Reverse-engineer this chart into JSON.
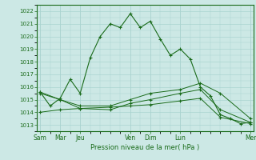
{
  "bg_color": "#cce8e5",
  "grid_color": "#aad4d0",
  "line_color": "#1a6b1a",
  "xlabel": "Pression niveau de la mer( hPa )",
  "ylim": [
    1012.5,
    1022.5
  ],
  "line1_x": [
    0,
    1,
    2,
    3,
    4,
    5,
    6,
    7,
    8,
    9,
    10,
    11,
    12,
    13,
    14,
    15,
    16,
    17,
    18,
    19,
    20,
    21
  ],
  "line1_y": [
    1015.6,
    1014.5,
    1015.1,
    1016.6,
    1015.5,
    1018.3,
    1020.0,
    1021.0,
    1020.7,
    1021.8,
    1020.7,
    1021.2,
    1019.8,
    1018.5,
    1019.0,
    1018.2,
    1016.0,
    1015.3,
    1013.8,
    1013.5,
    1013.1,
    1013.2
  ],
  "line2_x": [
    0,
    2,
    4,
    7,
    9,
    11,
    14,
    16,
    18,
    21
  ],
  "line2_y": [
    1015.6,
    1015.0,
    1014.3,
    1014.2,
    1014.7,
    1015.0,
    1015.5,
    1015.8,
    1014.2,
    1013.2
  ],
  "line3_x": [
    0,
    2,
    4,
    7,
    9,
    11,
    14,
    16,
    18,
    21
  ],
  "line3_y": [
    1014.0,
    1014.2,
    1014.3,
    1014.4,
    1014.5,
    1014.6,
    1014.9,
    1015.1,
    1013.6,
    1013.1
  ],
  "line4_x": [
    0,
    2,
    4,
    7,
    9,
    11,
    14,
    16,
    18,
    21
  ],
  "line4_y": [
    1015.5,
    1015.0,
    1014.5,
    1014.5,
    1015.0,
    1015.5,
    1015.8,
    1016.3,
    1015.5,
    1013.5
  ],
  "day_positions": [
    0,
    2,
    4,
    9,
    11,
    14,
    21
  ],
  "day_labels": [
    "Sam",
    "Mar",
    "Jeu",
    "Ven",
    "Dim",
    "Lun",
    "Mer"
  ],
  "vline_positions": [
    0,
    2,
    4,
    9,
    11,
    14,
    21
  ],
  "xlim": [
    -0.3,
    21.3
  ]
}
